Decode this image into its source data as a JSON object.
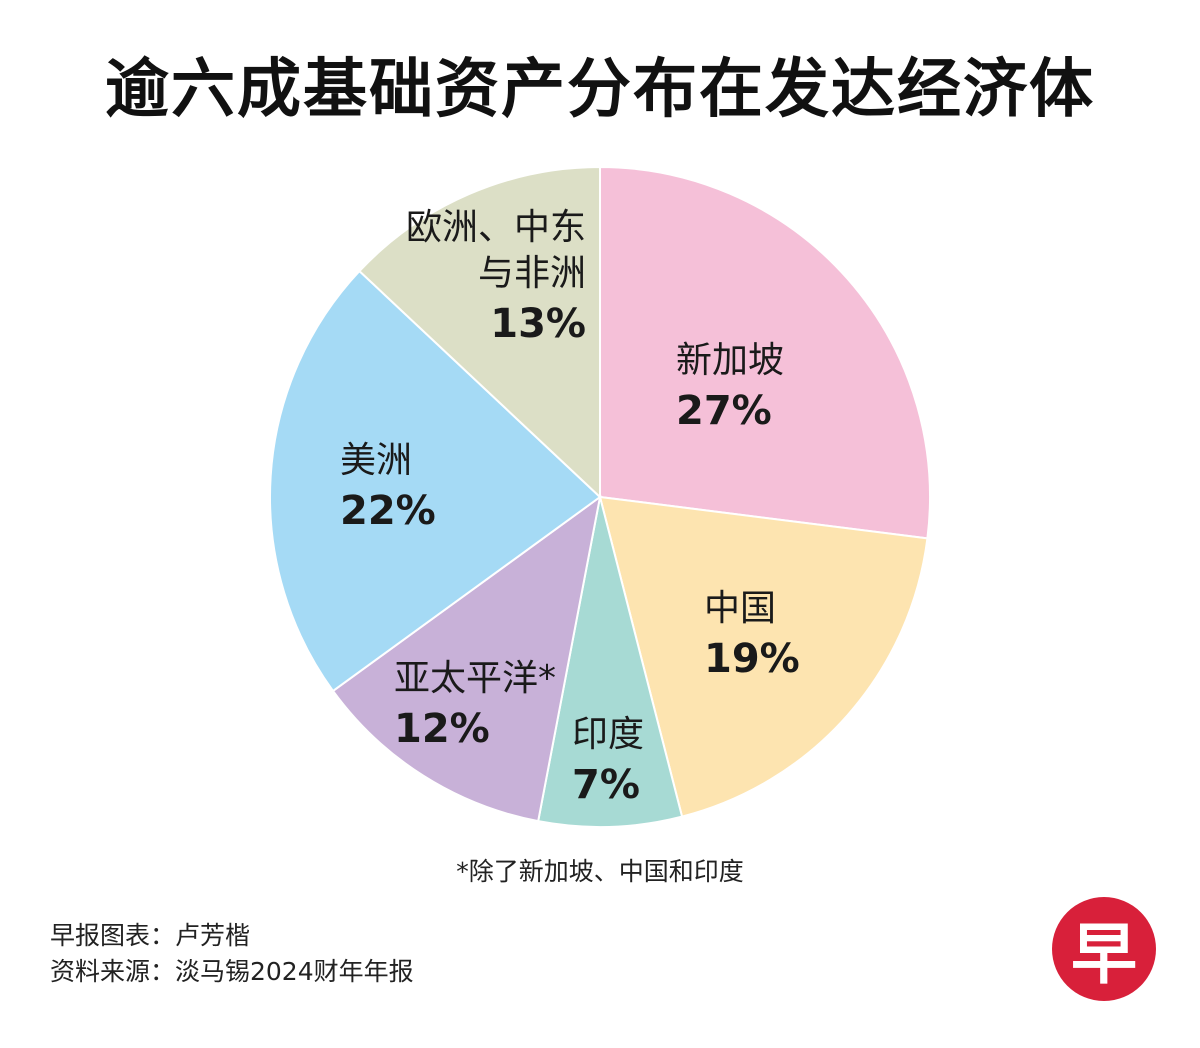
{
  "title": "逾六成基础资产分布在发达经济体",
  "chart_data": {
    "type": "pie",
    "title": "逾六成基础资产分布在发达经济体",
    "slices": [
      {
        "label_lines": [
          "新加坡"
        ],
        "value": 27,
        "value_label": "27%",
        "color": "#f5c0d8"
      },
      {
        "label_lines": [
          "中国"
        ],
        "value": 19,
        "value_label": "19%",
        "color": "#fde4b0"
      },
      {
        "label_lines": [
          "印度"
        ],
        "value": 7,
        "value_label": "7%",
        "color": "#a7dad4"
      },
      {
        "label_lines": [
          "亚太平洋*"
        ],
        "value": 12,
        "value_label": "12%",
        "color": "#c8b1d8"
      },
      {
        "label_lines": [
          "美洲"
        ],
        "value": 22,
        "value_label": "22%",
        "color": "#a5daf5"
      },
      {
        "label_lines": [
          "欧洲、中东",
          "与非洲"
        ],
        "value": 13,
        "value_label": "13%",
        "color": "#dcdfc6"
      }
    ]
  },
  "footnote": "*除了新加坡、中国和印度",
  "credits": {
    "graphic": "早报图表：卢芳楷",
    "source": "资料来源：淡马锡2024财年年报"
  },
  "logo": {
    "text": "早",
    "color": "#d8203a"
  }
}
